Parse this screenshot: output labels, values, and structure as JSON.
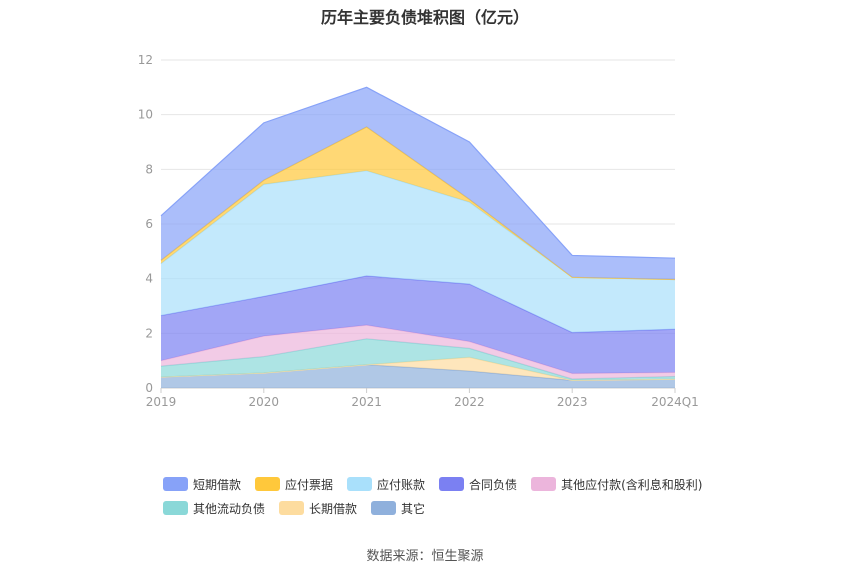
{
  "chart_data": {
    "type": "area",
    "stacked": true,
    "title": "历年主要负债堆积图（亿元）",
    "categories": [
      "2019",
      "2020",
      "2021",
      "2022",
      "2023",
      "2024Q1"
    ],
    "y_ticks": [
      "0",
      "2",
      "4",
      "6",
      "8",
      "10",
      "12"
    ],
    "ylim": [
      0,
      12
    ],
    "grid": true,
    "legend_position": "bottom",
    "series": [
      {
        "name": "其它",
        "color": "#8fb0dc",
        "values": [
          0.4,
          0.55,
          0.85,
          0.62,
          0.28,
          0.32
        ]
      },
      {
        "name": "长期借款",
        "color": "#fddc9f",
        "values": [
          0.0,
          0.0,
          0.0,
          0.5,
          0.0,
          0.0
        ]
      },
      {
        "name": "其他流动负债",
        "color": "#8ad8d8",
        "values": [
          0.4,
          0.6,
          0.95,
          0.33,
          0.05,
          0.1
        ]
      },
      {
        "name": "其他应付款(含利息和股利)",
        "color": "#ecb5dc",
        "values": [
          0.2,
          0.75,
          0.5,
          0.25,
          0.2,
          0.15
        ]
      },
      {
        "name": "合同负债",
        "color": "#7b80f2",
        "values": [
          1.65,
          1.45,
          1.8,
          2.1,
          1.5,
          1.58
        ]
      },
      {
        "name": "应付账款",
        "color": "#a9e0fb",
        "values": [
          1.9,
          4.1,
          3.85,
          3.0,
          2.02,
          1.82
        ]
      },
      {
        "name": "应付票据",
        "color": "#ffc83b",
        "values": [
          0.12,
          0.15,
          1.6,
          0.1,
          0.0,
          0.0
        ]
      },
      {
        "name": "短期借款",
        "color": "#87a2f8",
        "values": [
          1.63,
          2.1,
          1.45,
          2.1,
          0.8,
          0.78
        ]
      }
    ],
    "legend_order": [
      "短期借款",
      "应付票据",
      "应付账款",
      "合同负债",
      "其他应付款(含利息和股利)",
      "其他流动负债",
      "长期借款",
      "其它"
    ]
  },
  "source_label": "数据来源：恒生聚源"
}
